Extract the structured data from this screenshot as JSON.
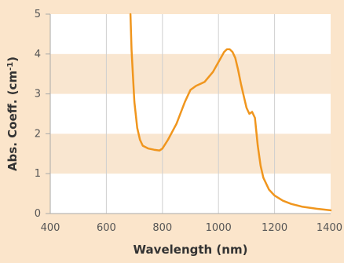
{
  "chart_data": {
    "type": "line",
    "title": "",
    "xlabel": "Wavelength (nm)",
    "ylabel": "Abs. Coeff. (cm",
    "ylabel_superscript": "-1",
    "ylabel_close": ")",
    "xlim": [
      400,
      1400
    ],
    "ylim": [
      0,
      5
    ],
    "xticks": [
      "400",
      "600",
      "800",
      "1000",
      "1200",
      "1400"
    ],
    "yticks": [
      "0",
      "1",
      "2",
      "3",
      "4",
      "5"
    ],
    "grid": true,
    "legend": "none",
    "colors": {
      "line": "#f0961e",
      "band": "#f9e6d0",
      "plot_bg": "#ffffff",
      "grid": "#cfcfcf",
      "page_bg": "#fbe5cb"
    },
    "series": [
      {
        "x": [
          686,
          690,
          700,
          710,
          720,
          730,
          750,
          770,
          790,
          800,
          820,
          850,
          880,
          900,
          920,
          950,
          980,
          1000,
          1020,
          1030,
          1040,
          1050,
          1060,
          1070,
          1080,
          1090,
          1100,
          1110,
          1120,
          1130,
          1140,
          1150,
          1160,
          1180,
          1200,
          1230,
          1260,
          1300,
          1350,
          1400
        ],
        "y": [
          5.0,
          4.1,
          2.8,
          2.15,
          1.85,
          1.7,
          1.63,
          1.6,
          1.58,
          1.63,
          1.85,
          2.25,
          2.8,
          3.1,
          3.2,
          3.3,
          3.55,
          3.8,
          4.05,
          4.12,
          4.12,
          4.05,
          3.9,
          3.6,
          3.25,
          2.95,
          2.65,
          2.5,
          2.55,
          2.4,
          1.7,
          1.2,
          0.9,
          0.6,
          0.45,
          0.32,
          0.24,
          0.17,
          0.12,
          0.08
        ]
      }
    ]
  }
}
